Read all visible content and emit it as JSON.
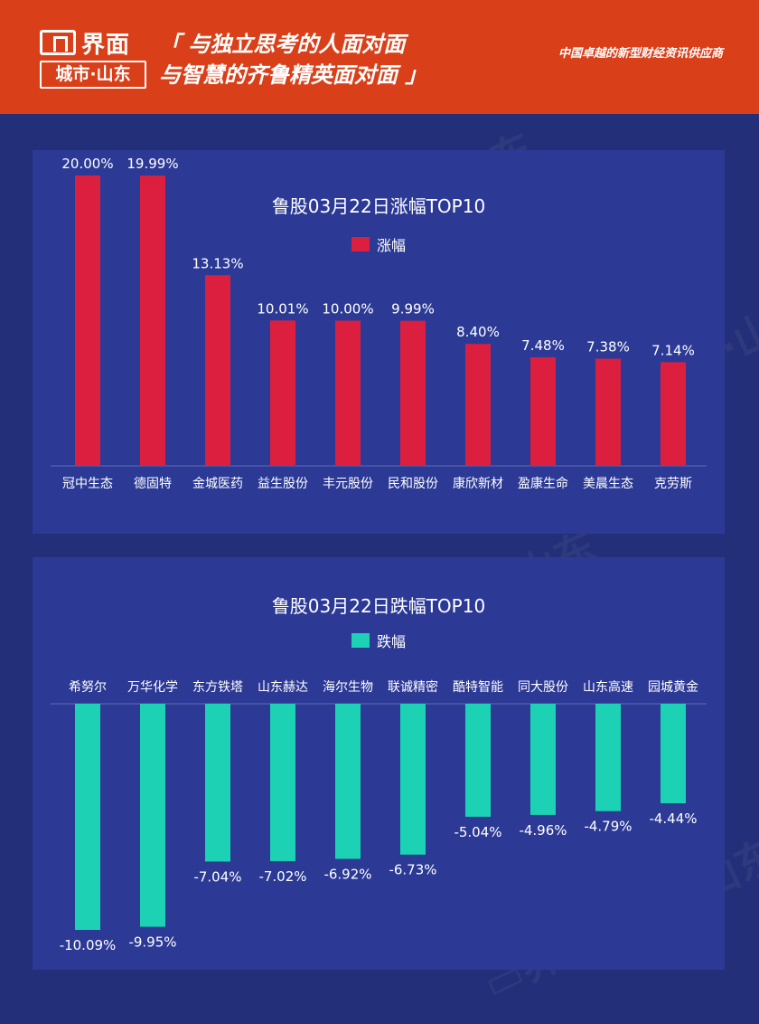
{
  "header": {
    "brand": "界面",
    "city": "城市·山东",
    "slogan_line1": "「 与独立思考的人面对面",
    "slogan_line2": "与智慧的齐鲁精英面对面 」",
    "tagline": "中国卓越的新型财经资讯供应商"
  },
  "colors": {
    "header_bg": "#d9401a",
    "page_bg": "#232f78",
    "panel_bg": "#2c3a96",
    "rise": "#dc1f3e",
    "fall": "#1dd2b4"
  },
  "chart_data": [
    {
      "type": "bar",
      "title": "鲁股03月22日涨幅TOP10",
      "legend": "涨幅",
      "categories": [
        "冠中生态",
        "德固特",
        "金城医药",
        "益生股份",
        "丰元股份",
        "民和股份",
        "康欣新材",
        "盈康生命",
        "美晨生态",
        "克劳斯"
      ],
      "values": [
        20.0,
        19.99,
        13.13,
        10.01,
        10.0,
        9.99,
        8.4,
        7.48,
        7.38,
        7.14
      ],
      "labels": [
        "20.00%",
        "19.99%",
        "13.13%",
        "10.01%",
        "10.00%",
        "9.99%",
        "8.40%",
        "7.48%",
        "7.38%",
        "7.14%"
      ],
      "ylim": [
        0,
        20
      ],
      "color": "#dc1f3e"
    },
    {
      "type": "bar",
      "title": "鲁股03月22日跌幅TOP10",
      "legend": "跌幅",
      "categories": [
        "希努尔",
        "万华化学",
        "东方铁塔",
        "山东赫达",
        "海尔生物",
        "联诚精密",
        "酷特智能",
        "同大股份",
        "山东高速",
        "园城黄金"
      ],
      "values": [
        -10.09,
        -9.95,
        -7.04,
        -7.02,
        -6.92,
        -6.73,
        -5.04,
        -4.96,
        -4.79,
        -4.44
      ],
      "labels": [
        "-10.09%",
        "-9.95%",
        "-7.04%",
        "-7.02%",
        "-6.92%",
        "-6.73%",
        "-5.04%",
        "-4.96%",
        "-4.79%",
        "-4.44%"
      ],
      "ylim": [
        -10.09,
        0
      ],
      "color": "#1dd2b4"
    }
  ]
}
